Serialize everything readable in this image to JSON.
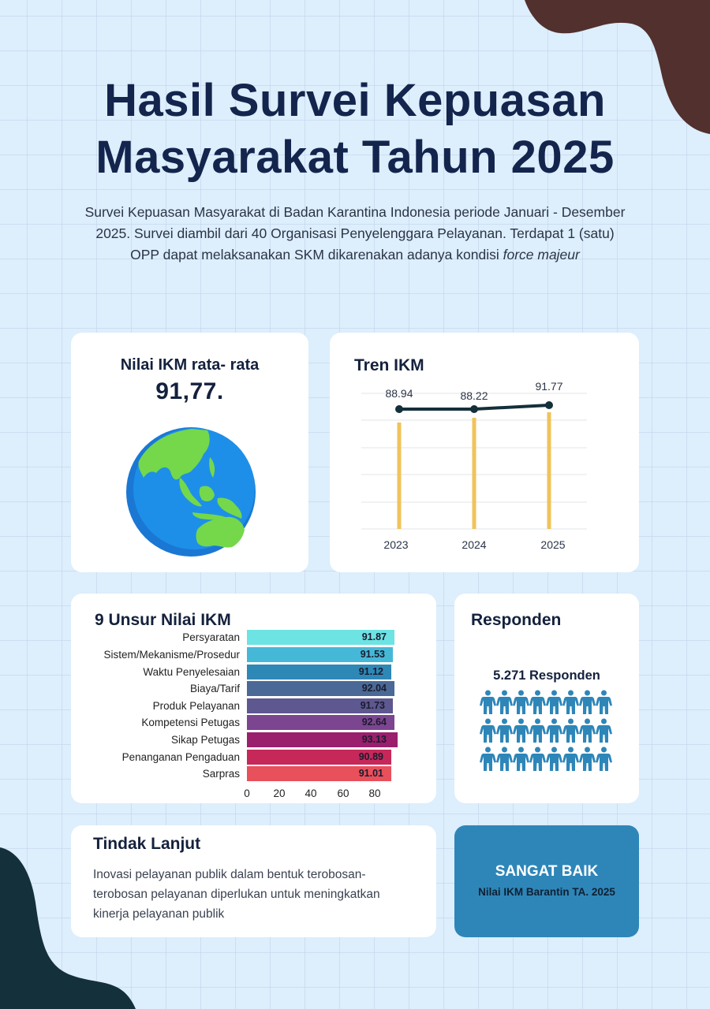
{
  "header": {
    "title_line1": "Hasil Survei Kepuasan",
    "title_line2": "Masyarakat Tahun 2025",
    "subtitle_line1": "Survei Kepuasan Masyarakat di Badan Karantina Indonesia periode Januari - Desember",
    "subtitle_line2": "2025. Survei diambil dari 40 Organisasi Penyelenggara Pelayanan. Terdapat 1 (satu)",
    "subtitle_line3_normal": "OPP dapat melaksanakan SKM dikarenakan adanya kondisi ",
    "subtitle_line3_italic": "force majeur"
  },
  "ikm_card": {
    "label": "Nilai IKM rata- rata",
    "value": "91,77.",
    "icon": "globe-icon"
  },
  "tren_card": {
    "title": "Tren IKM"
  },
  "unsur_card": {
    "title": "9 Unsur Nilai IKM"
  },
  "responden_card": {
    "title": "Responden",
    "count_label": "5.271 Responden",
    "icon": "person-icon",
    "icon_count": 24
  },
  "tindak_lanjut": {
    "title": "Tindak Lanjut",
    "line1": "Inovasi pelayanan publik dalam bentuk terobosan-",
    "line2": "terobosan pelayanan diperlukan untuk meningkatkan",
    "line3": "kinerja pelayanan publik"
  },
  "badge": {
    "main": "SANGAT BAIK",
    "sub": "Nilai IKM Barantin TA. 2025"
  },
  "colors": {
    "background": "#ddeefc",
    "title": "#13254d",
    "blob_top": "#52302d",
    "blob_bottom": "#14303a",
    "badge": "#2e86b8",
    "tren_line": "#14303a",
    "tren_bar": "#f0c35a",
    "people": "#2e86b8"
  },
  "chart_data": [
    {
      "type": "line",
      "title": "Tren IKM",
      "categories": [
        "2023",
        "2024",
        "2025"
      ],
      "series": [
        {
          "name": "IKM",
          "values": [
            88.94,
            88.22,
            91.77
          ]
        }
      ],
      "data_labels": [
        "88.94",
        "88.22",
        "91.77"
      ],
      "xlabel": "",
      "ylabel": "",
      "grid": true,
      "notes": "Line over thin yellow drop bars for each year"
    },
    {
      "type": "bar",
      "orientation": "horizontal",
      "title": "9 Unsur Nilai IKM",
      "categories": [
        "Persyaratan",
        "Sistem/Mekanisme/Prosedur",
        "Waktu Penyelesaian",
        "Biaya/Tarif",
        "Produk Pelayanan",
        "Kompetensi Petugas",
        "Sikap Petugas",
        "Penanganan Pengaduan",
        "Sarpras"
      ],
      "values": [
        91.87,
        91.53,
        91.12,
        92.04,
        91.73,
        92.64,
        93.13,
        90.89,
        91.01
      ],
      "value_labels": [
        "91.87",
        "91.53",
        "91.12",
        "92.04",
        "91.73",
        "92.64",
        "93.13",
        "90.89",
        "91.01"
      ],
      "bar_colors": [
        "#6de3e3",
        "#45b8d8",
        "#2e88b6",
        "#4a6996",
        "#5e5890",
        "#7c4590",
        "#9a1f6c",
        "#c6285a",
        "#e8505b"
      ],
      "x_ticks": [
        "0",
        "20",
        "40",
        "60",
        "80"
      ],
      "xlim": [
        0,
        95
      ],
      "grid": false
    }
  ]
}
